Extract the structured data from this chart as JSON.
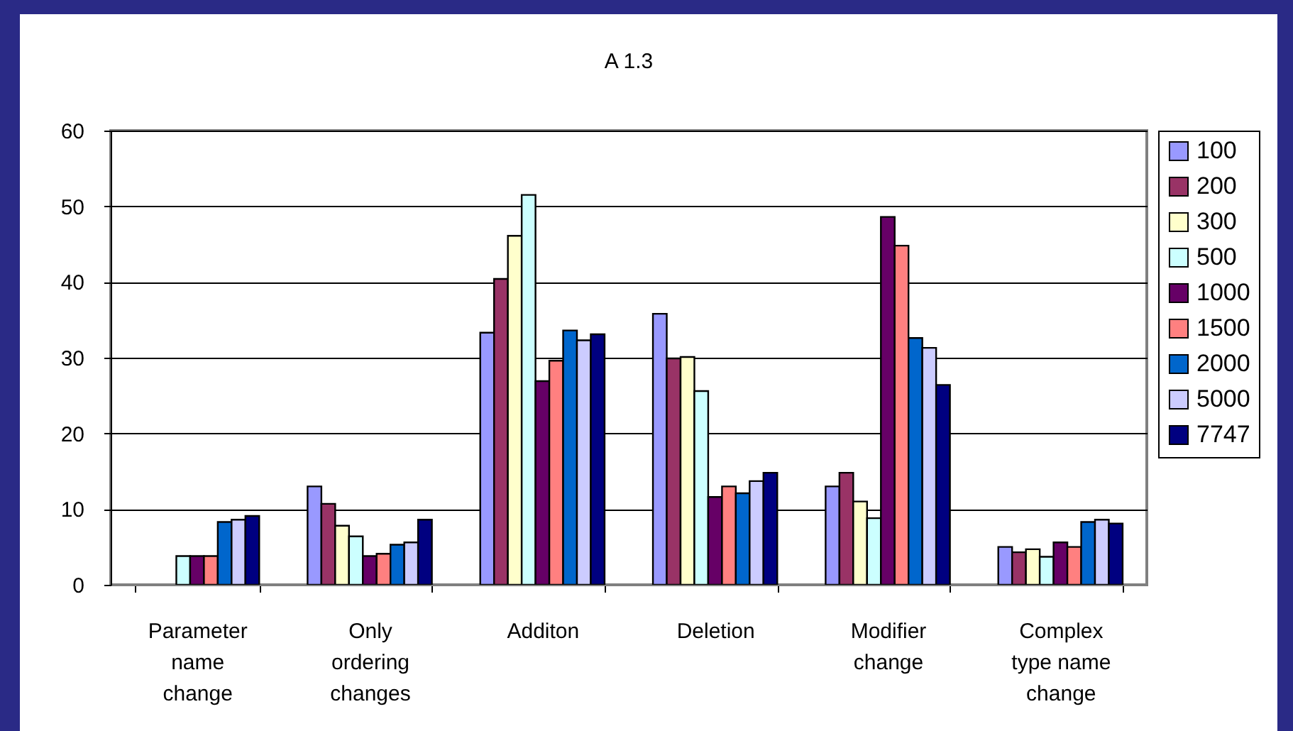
{
  "chart_data": {
    "type": "bar",
    "title": "A 1.3",
    "categories": [
      "Parameter name change",
      "Only ordering changes",
      "Additon",
      "Deletion",
      "Modifier change",
      "Complex type name change"
    ],
    "series": [
      {
        "name": "100",
        "color": "#9999ff",
        "values": [
          null,
          13.0,
          33.3,
          35.8,
          13.0,
          5.0
        ]
      },
      {
        "name": "200",
        "color": "#993366",
        "values": [
          null,
          10.7,
          40.4,
          29.9,
          14.8,
          4.3
        ]
      },
      {
        "name": "300",
        "color": "#ffffcc",
        "values": [
          null,
          7.8,
          46.1,
          30.1,
          11.0,
          4.7
        ]
      },
      {
        "name": "500",
        "color": "#ccffff",
        "values": [
          3.8,
          6.4,
          51.5,
          25.6,
          8.8,
          3.7
        ]
      },
      {
        "name": "1000",
        "color": "#660066",
        "values": [
          3.8,
          3.8,
          26.9,
          11.6,
          48.6,
          5.6
        ]
      },
      {
        "name": "1500",
        "color": "#ff8080",
        "values": [
          3.8,
          4.1,
          29.6,
          13.0,
          44.8,
          5.0
        ]
      },
      {
        "name": "2000",
        "color": "#0066cc",
        "values": [
          8.3,
          5.3,
          33.6,
          12.1,
          32.6,
          8.3
        ]
      },
      {
        "name": "5000",
        "color": "#ccccff",
        "values": [
          8.6,
          5.6,
          32.3,
          13.7,
          31.3,
          8.6
        ]
      },
      {
        "name": "7747",
        "color": "#000080",
        "values": [
          9.1,
          8.6,
          33.1,
          14.8,
          26.4,
          8.1
        ]
      }
    ],
    "ylim": [
      0,
      60
    ],
    "yticks": [
      0,
      10,
      20,
      30,
      40,
      50,
      60
    ],
    "grid": "y",
    "legend": "right"
  }
}
